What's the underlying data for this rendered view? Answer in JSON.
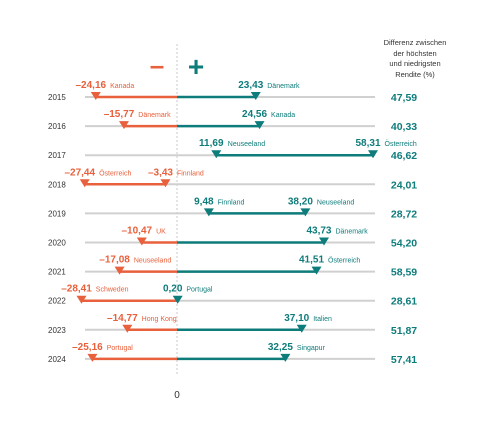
{
  "header": {
    "line1": "Differenz zwischen",
    "line2": "der höchsten",
    "line3": "und niedrigsten",
    "line4": "Rendite (%)"
  },
  "colors": {
    "negative": "#e8603c",
    "positive": "#0e7c7b",
    "baseline": "#d0d0d0",
    "zero_line": "#c8c8c8",
    "year_text": "#333333"
  },
  "chart_data": {
    "type": "range-bar",
    "title": "",
    "xlabel": "",
    "ylabel": "",
    "minus_sign": "–",
    "plus_sign": "+",
    "zero_label": "0",
    "xlim": [
      -30,
      60
    ],
    "rows": [
      {
        "year": "2015",
        "min": -24.16,
        "min_label": "–24,16",
        "min_country": "Kanada",
        "max": 23.43,
        "max_label": "23,43",
        "max_country": "Dänemark",
        "diff": "47,59"
      },
      {
        "year": "2016",
        "min": -15.77,
        "min_label": "–15,77",
        "min_country": "Dänemark",
        "max": 24.56,
        "max_label": "24,56",
        "max_country": "Kanada",
        "diff": "40,33"
      },
      {
        "year": "2017",
        "min": 11.69,
        "min_label": "11,69",
        "min_country": "Neuseeland",
        "max": 58.31,
        "max_label": "58,31",
        "max_country": "Österreich",
        "diff": "46,62"
      },
      {
        "year": "2018",
        "min": -27.44,
        "min_label": "–27,44",
        "min_country": "Österreich",
        "max": -3.43,
        "max_label": "–3,43",
        "max_country": "Finnland",
        "diff": "24,01"
      },
      {
        "year": "2019",
        "min": 9.48,
        "min_label": "9,48",
        "min_country": "Finnland",
        "max": 38.2,
        "max_label": "38,20",
        "max_country": "Neuseeland",
        "diff": "28,72"
      },
      {
        "year": "2020",
        "min": -10.47,
        "min_label": "–10,47",
        "min_country": "UK",
        "max": 43.73,
        "max_label": "43,73",
        "max_country": "Dänemark",
        "diff": "54,20"
      },
      {
        "year": "2021",
        "min": -17.08,
        "min_label": "–17,08",
        "min_country": "Neuseeland",
        "max": 41.51,
        "max_label": "41,51",
        "max_country": "Österreich",
        "diff": "58,59"
      },
      {
        "year": "2022",
        "min": -28.41,
        "min_label": "–28,41",
        "min_country": "Schweden",
        "max": 0.2,
        "max_label": "0,20",
        "max_country": "Portugal",
        "diff": "28,61"
      },
      {
        "year": "2023",
        "min": -14.77,
        "min_label": "–14,77",
        "min_country": "Hong Kong",
        "max": 37.1,
        "max_label": "37,10",
        "max_country": "Italien",
        "diff": "51,87"
      },
      {
        "year": "2024",
        "min": -25.16,
        "min_label": "–25,16",
        "min_country": "Portugal",
        "max": 32.25,
        "max_label": "32,25",
        "max_country": "Singapur",
        "diff": "57,41"
      }
    ]
  }
}
